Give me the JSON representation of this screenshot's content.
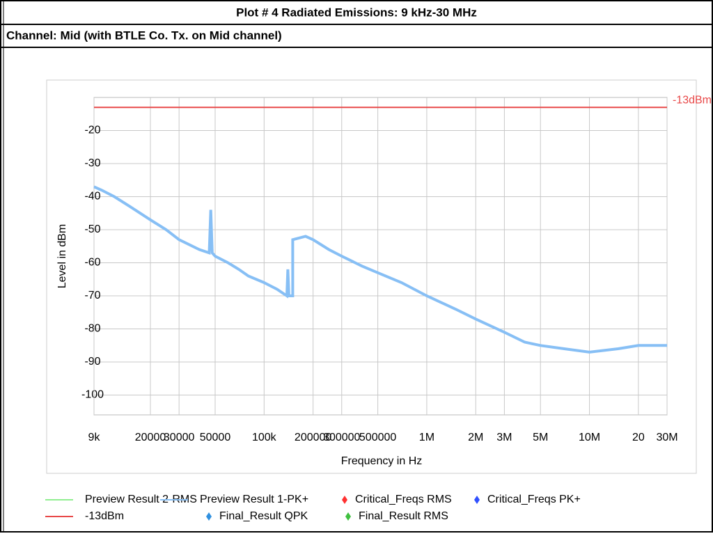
{
  "header": {
    "title": "Plot # 4 Radiated Emissions: 9 kHz-30 MHz",
    "channel": "Channel: Mid (with BTLE Co. Tx. on Mid channel)"
  },
  "chart_data": {
    "type": "line",
    "xlabel": "Frequency in Hz",
    "ylabel": "Level in dBm",
    "xscale": "log",
    "grid": true,
    "xlim": [
      9000,
      30000000
    ],
    "ylim": [
      -106,
      -10
    ],
    "xticks": [
      {
        "value": 9000,
        "label": "9k"
      },
      20000,
      30000,
      50000,
      {
        "value": 100000,
        "label": "100k"
      },
      200000,
      300000,
      500000,
      {
        "value": 1000000,
        "label": "1M"
      },
      {
        "value": 2000000,
        "label": "2M"
      },
      {
        "value": 3000000,
        "label": "3M"
      },
      {
        "value": 5000000,
        "label": "5M"
      },
      {
        "value": 10000000,
        "label": "10M"
      },
      {
        "value": 20000000,
        "label": "20"
      },
      {
        "value": 30000000,
        "label": "30M"
      }
    ],
    "yticks": [
      -20,
      -30,
      -40,
      -50,
      -60,
      -70,
      -80,
      -90,
      -100
    ],
    "series": [
      {
        "name": "Preview Result 2-RMS",
        "color": "#90ee90",
        "style": "line",
        "x": [],
        "values": []
      },
      {
        "name": "Preview Result 1-PK+",
        "color": "#87bff5",
        "style": "line",
        "x": [
          9000,
          10000,
          12000,
          15000,
          20000,
          25000,
          30000,
          40000,
          46000,
          47000,
          48000,
          50000,
          60000,
          70000,
          80000,
          100000,
          120000,
          138000,
          140000,
          142000,
          150000,
          150000,
          180000,
          200000,
          250000,
          300000,
          400000,
          500000,
          700000,
          1000000,
          1500000,
          2000000,
          3000000,
          4000000,
          5000000,
          7000000,
          10000000,
          15000000,
          20000000,
          30000000
        ],
        "values": [
          -37,
          -38,
          -40,
          -43,
          -47,
          -50,
          -53,
          -56,
          -57,
          -44,
          -57,
          -58,
          -60,
          -62,
          -64,
          -66,
          -68,
          -70,
          -62,
          -70,
          -70,
          -53,
          -52,
          -53,
          -56,
          -58,
          -61,
          -63,
          -66,
          -70,
          -74,
          -77,
          -81,
          -84,
          -85,
          -86,
          -87,
          -86,
          -85,
          -85
        ]
      },
      {
        "name": "Critical_Freqs RMS",
        "color": "#ff3030",
        "style": "marker",
        "x": [],
        "values": []
      },
      {
        "name": "Critical_Freqs PK+",
        "color": "#3050ff",
        "style": "marker",
        "x": [],
        "values": []
      },
      {
        "name": "-13dBm",
        "color": "#e84848",
        "style": "line",
        "x": [
          9000,
          30000000
        ],
        "values": [
          -13,
          -13
        ]
      },
      {
        "name": "Final_Result QPK",
        "color": "#3090e0",
        "style": "marker",
        "x": [],
        "values": []
      },
      {
        "name": "Final_Result RMS",
        "color": "#40c040",
        "style": "marker",
        "x": [],
        "values": []
      }
    ]
  }
}
